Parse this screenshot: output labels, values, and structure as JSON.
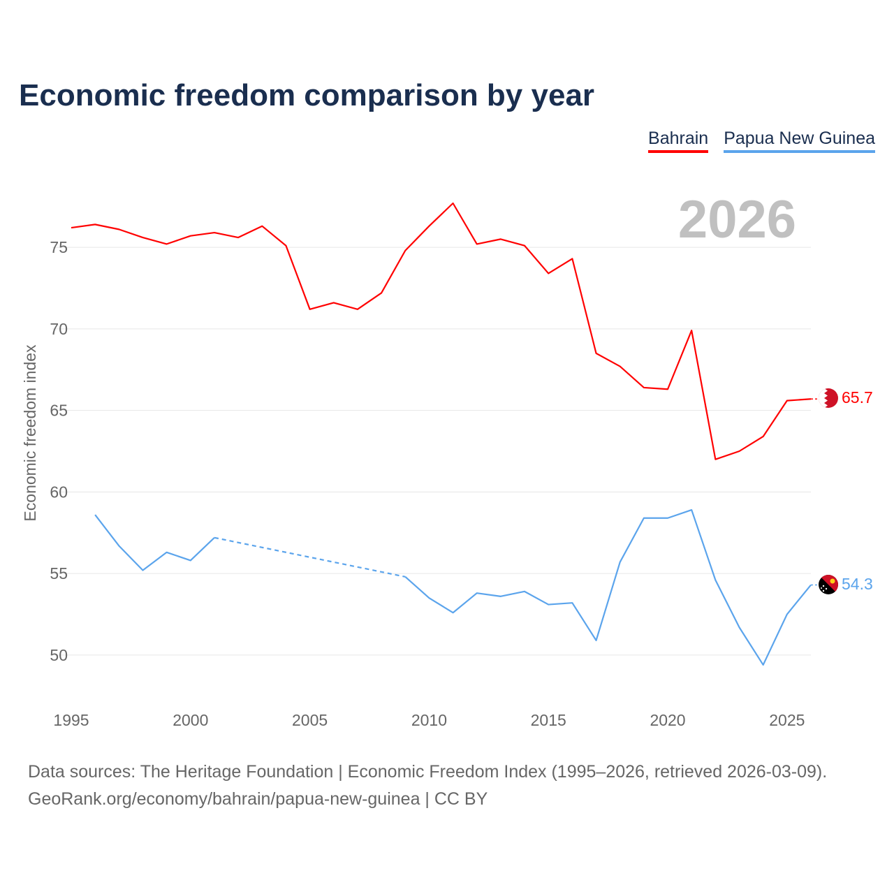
{
  "chart_data": {
    "type": "line",
    "title": "Economic freedom comparison by year",
    "ylabel": "Economic freedom index",
    "xlabel": "",
    "xlim": [
      1995,
      2026
    ],
    "ylim": [
      47,
      78
    ],
    "yticks": [
      50,
      55,
      60,
      65,
      70,
      75
    ],
    "xticks": [
      1995,
      2000,
      2005,
      2010,
      2015,
      2020,
      2025
    ],
    "grid": true,
    "legend_placement": "top-right",
    "year_watermark": "2026",
    "x": [
      1995,
      1996,
      1997,
      1998,
      1999,
      2000,
      2001,
      2002,
      2003,
      2004,
      2005,
      2006,
      2007,
      2008,
      2009,
      2010,
      2011,
      2012,
      2013,
      2014,
      2015,
      2016,
      2017,
      2018,
      2019,
      2020,
      2021,
      2022,
      2023,
      2024,
      2025,
      2026
    ],
    "series": [
      {
        "name": "Bahrain",
        "color": "#ff0000",
        "end_label": "65.7",
        "values": [
          76.2,
          76.4,
          76.1,
          75.6,
          75.2,
          75.7,
          75.9,
          75.6,
          76.3,
          75.1,
          71.2,
          71.6,
          71.2,
          72.2,
          74.8,
          76.3,
          77.7,
          75.2,
          75.5,
          75.1,
          73.4,
          74.3,
          68.5,
          67.7,
          66.4,
          66.3,
          69.9,
          62.0,
          62.5,
          63.4,
          65.6,
          65.7
        ]
      },
      {
        "name": "Papua New Guinea",
        "color": "#5ba4ec",
        "end_label": "54.3",
        "values": [
          null,
          58.6,
          56.7,
          55.2,
          56.3,
          55.8,
          57.2,
          null,
          null,
          null,
          null,
          null,
          null,
          null,
          54.8,
          53.5,
          52.6,
          53.8,
          53.6,
          53.9,
          53.1,
          53.2,
          50.9,
          55.7,
          58.4,
          58.4,
          58.9,
          54.6,
          51.7,
          49.4,
          52.5,
          54.3
        ]
      }
    ]
  },
  "footer": {
    "line1": "Data sources: The Heritage Foundation | Economic Freedom Index (1995–2026, retrieved 2026-03-09).",
    "line2": "GeoRank.org/economy/bahrain/papua-new-guinea | CC BY"
  }
}
